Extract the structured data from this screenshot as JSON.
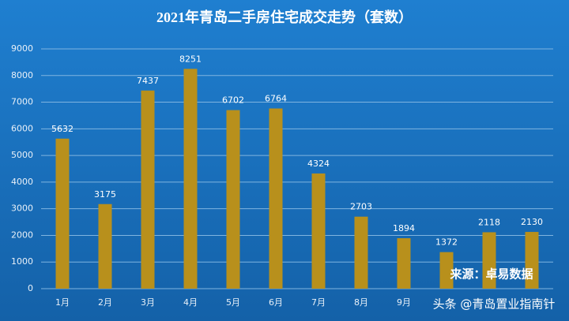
{
  "chart_data": {
    "type": "bar",
    "title": "2021年青岛二手房住宅成交走势（套数）",
    "categories": [
      "1月",
      "2月",
      "3月",
      "4月",
      "5月",
      "6月",
      "7月",
      "8月",
      "9月",
      null,
      null,
      null
    ],
    "values": [
      5632,
      3175,
      7437,
      8251,
      6702,
      6764,
      4324,
      2703,
      1894,
      1372,
      2118,
      2130
    ],
    "color": "#b8901c",
    "ylim": [
      0,
      9000
    ],
    "yticks": [
      0,
      1000,
      2000,
      3000,
      4000,
      5000,
      6000,
      7000,
      8000,
      9000
    ],
    "grid": true,
    "source": "来源：卓易数据",
    "watermark": "头条 @青岛置业指南针"
  }
}
